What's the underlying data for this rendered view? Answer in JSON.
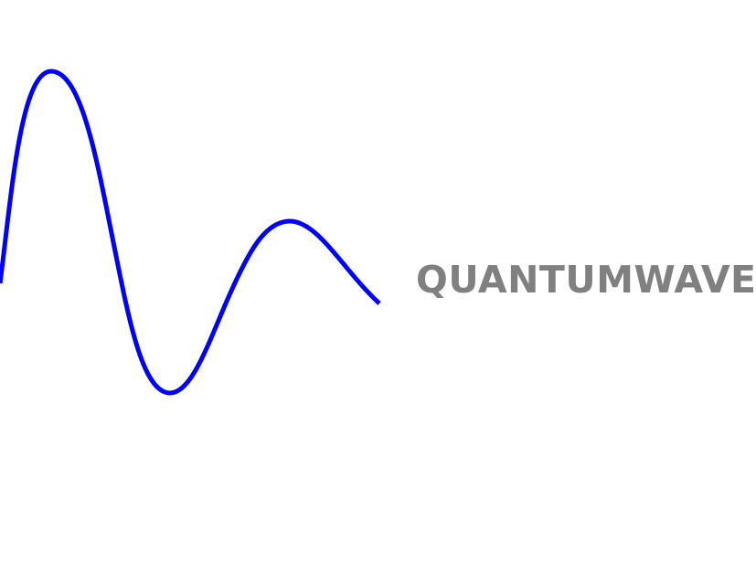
{
  "logo": {
    "wordmark": "QUANTUMWAVE",
    "text_color": "#808080",
    "wave_color": "#0000ff",
    "background_color": "#ffffff",
    "wave_icon": "damped-sine-wave-icon"
  }
}
